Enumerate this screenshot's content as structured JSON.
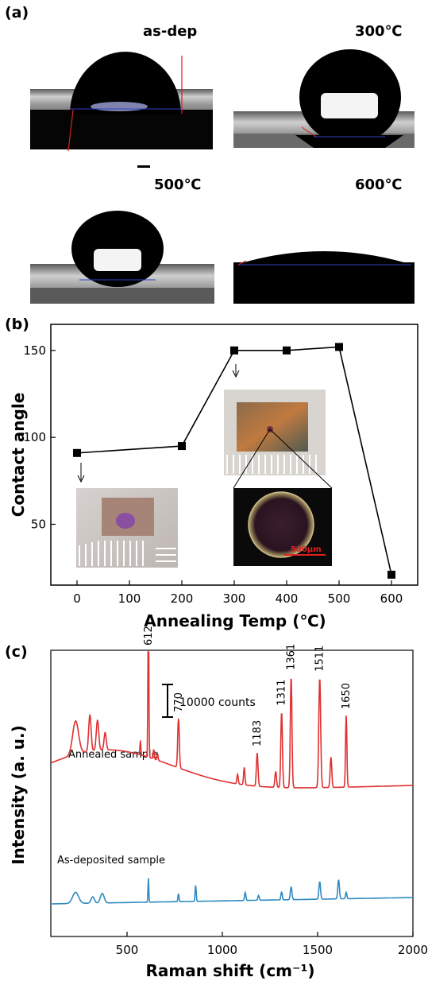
{
  "panel_labels": {
    "a": "(a)",
    "b": "(b)",
    "c": "(c)"
  },
  "droplets": [
    {
      "label": "as-dep"
    },
    {
      "label": "300℃"
    },
    {
      "label": "500℃"
    },
    {
      "label": "600℃"
    }
  ],
  "colors": {
    "annealed": "#e03030",
    "asdeposited": "#2f8ac0",
    "droplet": "#000000",
    "substrate": "#8c8c8c",
    "contact_line": "#d42020"
  },
  "inset_scale_label": "500μm",
  "chart_data": [
    {
      "type": "line",
      "xlabel": "Annealing Temp (℃)",
      "ylabel": "Contact angle",
      "xlim": [
        -50,
        650
      ],
      "ylim": [
        15,
        165
      ],
      "xticks": [
        "0",
        "100",
        "200",
        "300",
        "400",
        "500",
        "600"
      ],
      "yticks": [
        "50",
        "100",
        "150"
      ],
      "x": [
        0,
        200,
        300,
        400,
        500,
        600
      ],
      "y": [
        91,
        95,
        150,
        150,
        152,
        21
      ],
      "marker": "square"
    },
    {
      "type": "line",
      "xlabel": "Raman shift (cm⁻¹)",
      "ylabel": "Intensity (a. u.)",
      "xlim": [
        100,
        2000
      ],
      "xticks": [
        "500",
        "1000",
        "1500",
        "2000"
      ],
      "scale_bar_label": "10000 counts",
      "series": [
        {
          "name": "Annealed sample",
          "peaks": [
            {
              "x": 612,
              "label": "612"
            },
            {
              "x": 770,
              "label": "770"
            },
            {
              "x": 1183,
              "label": "1183"
            },
            {
              "x": 1311,
              "label": "1311"
            },
            {
              "x": 1361,
              "label": "1361"
            },
            {
              "x": 1511,
              "label": "1511"
            },
            {
              "x": 1650,
              "label": "1650"
            }
          ]
        },
        {
          "name": "As-deposited sample"
        }
      ]
    }
  ]
}
